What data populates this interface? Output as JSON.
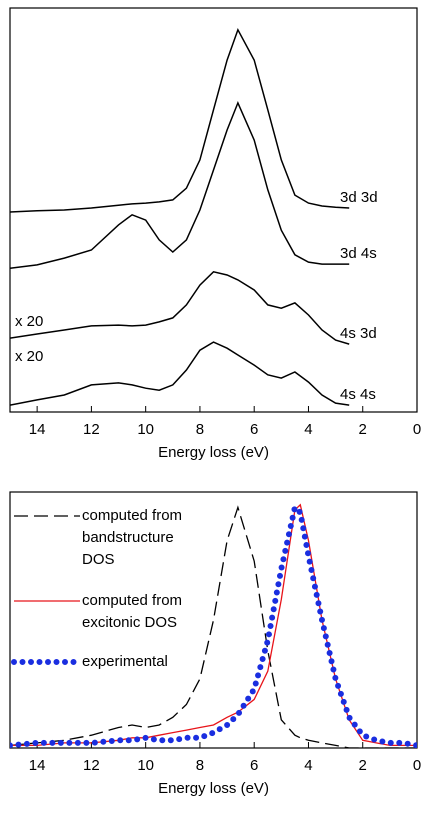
{
  "chart_data": [
    {
      "type": "line",
      "xlabel": "Energy loss (eV)",
      "x": [
        15,
        14,
        13,
        12,
        11,
        10.5,
        10,
        9.5,
        9,
        8.5,
        8,
        7.5,
        7,
        6.6,
        6,
        5.5,
        5,
        4.5,
        4,
        3.5,
        3,
        2.5
      ],
      "xlim": [
        15,
        0
      ],
      "xticks": [
        14,
        12,
        10,
        8,
        6,
        4,
        2,
        0
      ],
      "ylim": [
        0,
        10
      ],
      "annotations": [
        "x 20",
        "x 20"
      ],
      "series": [
        {
          "name": "3d 3d",
          "color": "#000000",
          "values": [
            4.95,
            4.98,
            5.0,
            5.05,
            5.12,
            5.15,
            5.17,
            5.2,
            5.25,
            5.54,
            6.24,
            7.48,
            8.71,
            9.46,
            8.71,
            7.48,
            6.24,
            5.37,
            5.17,
            5.1,
            5.07,
            5.05
          ]
        },
        {
          "name": "3d 4s",
          "color": "#000000",
          "values": [
            3.56,
            3.64,
            3.81,
            4.01,
            4.63,
            4.88,
            4.75,
            4.26,
            3.96,
            4.26,
            5.0,
            5.99,
            6.98,
            7.65,
            6.73,
            5.5,
            4.5,
            3.89,
            3.71,
            3.66,
            3.66,
            3.66
          ]
        },
        {
          "name": "4s 3d",
          "color": "#000000",
          "values": [
            1.83,
            1.93,
            2.03,
            2.13,
            2.15,
            2.13,
            2.15,
            2.23,
            2.33,
            2.65,
            3.14,
            3.47,
            3.39,
            3.27,
            3.02,
            2.65,
            2.57,
            2.7,
            2.4,
            2.03,
            1.78,
            1.68
          ]
        },
        {
          "name": "4s 4s",
          "color": "#000000",
          "values": [
            0.17,
            0.3,
            0.42,
            0.67,
            0.72,
            0.67,
            0.59,
            0.54,
            0.67,
            1.04,
            1.53,
            1.73,
            1.58,
            1.41,
            1.16,
            0.92,
            0.84,
            0.99,
            0.74,
            0.42,
            0.22,
            0.17
          ]
        }
      ]
    },
    {
      "type": "line",
      "xlabel": "Energy loss (eV)",
      "legend": "upper left",
      "x": [
        15,
        14,
        13,
        12,
        11,
        10.5,
        10,
        9.5,
        9,
        8.5,
        8,
        7.5,
        7,
        6.6,
        6,
        5.5,
        5,
        4.5,
        4.3,
        4,
        3.5,
        3,
        2.5,
        2,
        1.5,
        1,
        0.5,
        0
      ],
      "xlim": [
        15,
        0
      ],
      "xticks": [
        14,
        12,
        10,
        8,
        6,
        4,
        2,
        0
      ],
      "ylim": [
        0,
        1
      ],
      "series": [
        {
          "name": [
            "computed from",
            "bandstructure",
            "DOS"
          ],
          "color": "#000000",
          "dash": "dashed",
          "values": [
            0.01,
            0.02,
            0.03,
            0.05,
            0.08,
            0.09,
            0.08,
            0.09,
            0.12,
            0.17,
            0.27,
            0.5,
            0.81,
            0.94,
            0.73,
            0.38,
            0.11,
            0.05,
            0.04,
            0.03,
            0.02,
            0.01,
            0,
            0,
            0,
            0,
            0,
            0
          ]
        },
        {
          "name": [
            "computed from",
            "excitonic DOS"
          ],
          "color": "#e8141a",
          "dash": "solid",
          "values": [
            0.01,
            0.01,
            0.02,
            0.02,
            0.03,
            0.04,
            0.04,
            0.05,
            0.06,
            0.07,
            0.08,
            0.09,
            0.12,
            0.14,
            0.19,
            0.3,
            0.58,
            0.93,
            0.95,
            0.81,
            0.5,
            0.27,
            0.11,
            0.03,
            0.02,
            0.01,
            0.01,
            0.01
          ]
        },
        {
          "name": [
            "experimental"
          ],
          "color": "#1a2ee0",
          "dash": "dotted",
          "values": [
            0.01,
            0.02,
            0.02,
            0.02,
            0.03,
            0.03,
            0.04,
            0.03,
            0.03,
            0.04,
            0.04,
            0.06,
            0.09,
            0.13,
            0.23,
            0.42,
            0.7,
            0.94,
            0.92,
            0.75,
            0.5,
            0.27,
            0.12,
            0.05,
            0.03,
            0.02,
            0.02,
            0.01
          ]
        }
      ]
    }
  ]
}
